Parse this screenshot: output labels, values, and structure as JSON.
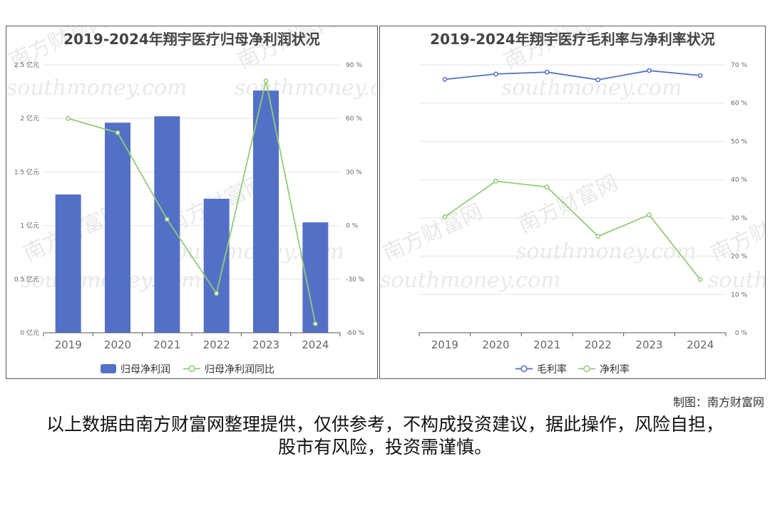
{
  "chart_data": [
    {
      "type": "bar",
      "title": "2019-2024年翔宇医疗归母净利润状况",
      "categories": [
        "2019",
        "2020",
        "2021",
        "2022",
        "2023",
        "2024"
      ],
      "series": [
        {
          "name": "归母净利润",
          "type": "bar",
          "axis": "left",
          "values": [
            1.29,
            1.96,
            2.02,
            1.25,
            2.26,
            1.03
          ]
        },
        {
          "name": "归母净利润同比",
          "type": "line",
          "axis": "right",
          "values": [
            60,
            52,
            3.5,
            -38,
            81,
            -55
          ]
        }
      ],
      "y_left": {
        "range": [
          0,
          2.5
        ],
        "ticks": [
          0,
          0.5,
          1,
          1.5,
          2,
          2.5
        ],
        "tick_labels": [
          "0 亿元",
          "0.5 亿元",
          "1 亿元",
          "1.5 亿元",
          "2 亿元",
          "2.5 亿元"
        ]
      },
      "y_right": {
        "range": [
          -60,
          90
        ],
        "ticks": [
          -60,
          -30,
          0,
          30,
          60,
          90
        ],
        "tick_labels": [
          "-60 %",
          "-30 %",
          "0 %",
          "30 %",
          "60 %",
          "90 %"
        ]
      },
      "grid": true,
      "legend": "bottom",
      "colors": {
        "bar": "#5470c6",
        "line": "#91cc75"
      }
    },
    {
      "type": "line",
      "title": "2019-2024年翔宇医疗毛利率与净利率状况",
      "categories": [
        "2019",
        "2020",
        "2021",
        "2022",
        "2023",
        "2024"
      ],
      "series": [
        {
          "name": "毛利率",
          "values": [
            66.2,
            67.6,
            68.1,
            66.1,
            68.5,
            67.2
          ]
        },
        {
          "name": "净利率",
          "values": [
            30.3,
            39.6,
            38.1,
            25.2,
            30.8,
            13.9
          ]
        }
      ],
      "y": {
        "range": [
          0,
          70
        ],
        "ticks": [
          0,
          10,
          20,
          30,
          40,
          50,
          60,
          70
        ],
        "tick_labels": [
          "0 %",
          "10 %",
          "20 %",
          "30 %",
          "40 %",
          "50 %",
          "60 %",
          "70 %"
        ]
      },
      "grid": true,
      "legend": "bottom",
      "colors": {
        "gross": "#5470c6",
        "net": "#91cc75"
      }
    }
  ],
  "watermark": {
    "cn": "南方财富网",
    "en": "southmoney.com"
  },
  "credit": "制图：南方财富网",
  "disclaimer": "以上数据由南方财富网整理提供，仅供参考，不构成投资建议，据此操作，风险自担，股市有风险，投资需谨慎。"
}
